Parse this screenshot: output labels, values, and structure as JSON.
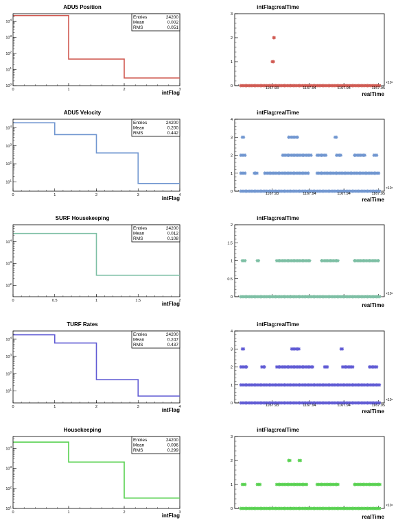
{
  "charts": [
    {
      "histogram": {
        "title": "ADU5 Position",
        "xlabel": "intFlag",
        "color": "#d05a52",
        "log_y": true,
        "x_ticks": [
          "0",
          "1",
          "2",
          "3"
        ],
        "x_range": [
          0,
          3
        ],
        "bins": [
          [
            0,
            1
          ],
          [
            1,
            2
          ],
          [
            2,
            3
          ]
        ],
        "counts": [
          23000,
          45,
          3
        ],
        "y_range": [
          1,
          30000
        ],
        "stats": {
          "entries_label": "Entries",
          "entries": "24200",
          "mean_label": "Mean",
          "mean": "0.002",
          "rms_label": "RMS",
          "rms": "0.051"
        }
      },
      "scatter": {
        "title": "intFlag:realTime",
        "xlabel": "realTime",
        "color": "#d05a52",
        "y_ticks": [
          "0",
          "1",
          "2",
          "3"
        ],
        "y_max": 3,
        "x_tick_labels": [
          "1167.93",
          "1167.94",
          "1167.94",
          "1167.95"
        ],
        "x_multiplier": "×10⁶",
        "levels": [
          {
            "y": 0,
            "segments": [
              [
                0.04,
                0.97
              ]
            ]
          },
          {
            "y": 1,
            "segments": [
              [
                0.25,
                0.27
              ]
            ]
          },
          {
            "y": 2,
            "segments": [
              [
                0.26,
                0.265
              ]
            ]
          }
        ]
      }
    },
    {
      "histogram": {
        "title": "ADU5 Velocity",
        "xlabel": "intFlag",
        "color": "#7096d0",
        "log_y": true,
        "x_ticks": [
          "0",
          "1",
          "2",
          "3",
          "4"
        ],
        "x_range": [
          0,
          4
        ],
        "bins": [
          [
            0,
            1
          ],
          [
            1,
            2
          ],
          [
            2,
            3
          ],
          [
            3,
            4
          ]
        ],
        "counts": [
          19000,
          4200,
          400,
          8
        ],
        "y_range": [
          3,
          30000
        ],
        "stats": {
          "entries_label": "Entries",
          "entries": "24200",
          "mean_label": "Mean",
          "mean": "0.200",
          "rms_label": "RMS",
          "rms": "0.442"
        }
      },
      "scatter": {
        "title": "intFlag:realTime",
        "xlabel": "realTime",
        "color": "#7096d0",
        "y_ticks": [
          "0",
          "1",
          "2",
          "3",
          "4"
        ],
        "y_max": 4,
        "x_tick_labels": [
          "1167.93",
          "1167.94",
          "1167.94",
          "1167.95"
        ],
        "x_multiplier": "×10⁶",
        "levels": [
          {
            "y": 0,
            "segments": [
              [
                0.04,
                0.97
              ]
            ]
          },
          {
            "y": 1,
            "segments": [
              [
                0.04,
                0.08
              ],
              [
                0.13,
                0.16
              ],
              [
                0.2,
                0.5
              ],
              [
                0.55,
                0.97
              ]
            ]
          },
          {
            "y": 2,
            "segments": [
              [
                0.04,
                0.08
              ],
              [
                0.32,
                0.52
              ],
              [
                0.55,
                0.62
              ],
              [
                0.68,
                0.72
              ],
              [
                0.8,
                0.88
              ],
              [
                0.93,
                0.96
              ]
            ]
          },
          {
            "y": 3,
            "segments": [
              [
                0.05,
                0.07
              ],
              [
                0.36,
                0.43
              ],
              [
                0.67,
                0.69
              ]
            ]
          }
        ]
      }
    },
    {
      "histogram": {
        "title": "SURF Housekeeping",
        "xlabel": "intFlag",
        "color": "#7dbfa4",
        "log_y": true,
        "x_ticks": [
          "0",
          "0.5",
          "1",
          "1.5",
          "2"
        ],
        "x_range": [
          0,
          2
        ],
        "bins": [
          [
            0,
            1
          ],
          [
            1,
            2
          ]
        ],
        "counts": [
          24000,
          290
        ],
        "y_range": [
          30,
          60000
        ],
        "stats": {
          "entries_label": "Entries",
          "entries": "24200",
          "mean_label": "Mean",
          "mean": "0.012",
          "rms_label": "RMS",
          "rms": "0.108"
        }
      },
      "scatter": {
        "title": "intFlag:realTime",
        "xlabel": "realTime",
        "color": "#7dbfa4",
        "y_ticks": [
          "0",
          "0.5",
          "1",
          "1.5",
          "2"
        ],
        "y_max": 2,
        "x_tick_labels": [],
        "x_multiplier": "×10⁶",
        "levels": [
          {
            "y": 0,
            "segments": [
              [
                0.04,
                0.97
              ]
            ]
          },
          {
            "y": 1,
            "segments": [
              [
                0.05,
                0.08
              ],
              [
                0.15,
                0.17
              ],
              [
                0.28,
                0.51
              ],
              [
                0.58,
                0.7
              ],
              [
                0.8,
                0.97
              ]
            ]
          }
        ]
      }
    },
    {
      "histogram": {
        "title": "TURF Rates",
        "xlabel": "intFlag",
        "color": "#5f5ad4",
        "log_y": true,
        "x_ticks": [
          "0",
          "1",
          "2",
          "3",
          "4"
        ],
        "x_range": [
          0,
          4
        ],
        "bins": [
          [
            0,
            1
          ],
          [
            1,
            2
          ],
          [
            2,
            3
          ],
          [
            3,
            4
          ]
        ],
        "counts": [
          18000,
          6000,
          45,
          5
        ],
        "y_range": [
          2,
          30000
        ],
        "stats": {
          "entries_label": "Entries",
          "entries": "24200",
          "mean_label": "Mean",
          "mean": "0.247",
          "rms_label": "RMS",
          "rms": "0.437"
        }
      },
      "scatter": {
        "title": "intFlag:realTime",
        "xlabel": "realTime",
        "color": "#5f5ad4",
        "y_ticks": [
          "0",
          "1",
          "2",
          "3",
          "4"
        ],
        "y_max": 4,
        "x_tick_labels": [
          "1167.93",
          "1167.94",
          "1167.94",
          "1167.95"
        ],
        "x_multiplier": "×10⁶",
        "levels": [
          {
            "y": 0,
            "segments": [
              [
                0.04,
                0.97
              ]
            ]
          },
          {
            "y": 1,
            "segments": [
              [
                0.04,
                0.97
              ]
            ]
          },
          {
            "y": 2,
            "segments": [
              [
                0.04,
                0.09
              ],
              [
                0.18,
                0.21
              ],
              [
                0.28,
                0.53
              ],
              [
                0.6,
                0.63
              ],
              [
                0.72,
                0.8
              ],
              [
                0.9,
                0.96
              ]
            ]
          },
          {
            "y": 3,
            "segments": [
              [
                0.05,
                0.07
              ],
              [
                0.38,
                0.44
              ],
              [
                0.71,
                0.73
              ]
            ]
          }
        ]
      }
    },
    {
      "histogram": {
        "title": "Housekeeping",
        "xlabel": "intFlag",
        "color": "#58d150",
        "log_y": true,
        "x_ticks": [
          "0",
          "1",
          "2",
          "3"
        ],
        "x_range": [
          0,
          3
        ],
        "bins": [
          [
            0,
            1
          ],
          [
            1,
            2
          ],
          [
            2,
            3
          ]
        ],
        "counts": [
          21000,
          2100,
          33
        ],
        "y_range": [
          10,
          40000
        ],
        "stats": {
          "entries_label": "Entries",
          "entries": "24200",
          "mean_label": "Mean",
          "mean": "0.096",
          "rms_label": "RMS",
          "rms": "0.299"
        }
      },
      "scatter": {
        "title": "intFlag:realTime",
        "xlabel": "realTime",
        "color": "#58d150",
        "y_ticks": [
          "0",
          "1",
          "2",
          "3"
        ],
        "y_max": 3,
        "x_tick_labels": [],
        "x_multiplier": "×10⁶",
        "levels": [
          {
            "y": 0,
            "segments": [
              [
                0.04,
                0.97
              ]
            ]
          },
          {
            "y": 1,
            "segments": [
              [
                0.05,
                0.08
              ],
              [
                0.15,
                0.18
              ],
              [
                0.28,
                0.49
              ],
              [
                0.55,
                0.7
              ],
              [
                0.8,
                0.98
              ]
            ]
          },
          {
            "y": 2,
            "segments": [
              [
                0.36,
                0.38
              ],
              [
                0.43,
                0.45
              ]
            ]
          }
        ]
      }
    }
  ],
  "chart_data": [
    {
      "type": "bar",
      "title": "ADU5 Position",
      "xlabel": "intFlag",
      "log_y": true,
      "categories": [
        "0-1",
        "1-2",
        "2-3"
      ],
      "values": [
        23000,
        45,
        3
      ],
      "entries": 24200,
      "mean": 0.002,
      "rms": 0.051
    },
    {
      "type": "scatter",
      "title": "intFlag:realTime",
      "xlabel": "realTime",
      "y_levels": [
        0,
        1,
        2
      ]
    },
    {
      "type": "bar",
      "title": "ADU5 Velocity",
      "xlabel": "intFlag",
      "log_y": true,
      "categories": [
        "0-1",
        "1-2",
        "2-3",
        "3-4"
      ],
      "values": [
        19000,
        4200,
        400,
        8
      ],
      "entries": 24200,
      "mean": 0.2,
      "rms": 0.442
    },
    {
      "type": "scatter",
      "title": "intFlag:realTime",
      "xlabel": "realTime",
      "y_levels": [
        0,
        1,
        2,
        3
      ]
    },
    {
      "type": "bar",
      "title": "SURF Housekeeping",
      "xlabel": "intFlag",
      "log_y": true,
      "categories": [
        "0-1",
        "1-2"
      ],
      "values": [
        24000,
        290
      ],
      "entries": 24200,
      "mean": 0.012,
      "rms": 0.108
    },
    {
      "type": "scatter",
      "title": "intFlag:realTime",
      "xlabel": "realTime",
      "y_levels": [
        0,
        1
      ]
    },
    {
      "type": "bar",
      "title": "TURF Rates",
      "xlabel": "intFlag",
      "log_y": true,
      "categories": [
        "0-1",
        "1-2",
        "2-3",
        "3-4"
      ],
      "values": [
        18000,
        6000,
        45,
        5
      ],
      "entries": 24200,
      "mean": 0.247,
      "rms": 0.437
    },
    {
      "type": "scatter",
      "title": "intFlag:realTime",
      "xlabel": "realTime",
      "y_levels": [
        0,
        1,
        2,
        3
      ]
    },
    {
      "type": "bar",
      "title": "Housekeeping",
      "xlabel": "intFlag",
      "log_y": true,
      "categories": [
        "0-1",
        "1-2",
        "2-3"
      ],
      "values": [
        21000,
        2100,
        33
      ],
      "entries": 24200,
      "mean": 0.096,
      "rms": 0.299
    },
    {
      "type": "scatter",
      "title": "intFlag:realTime",
      "xlabel": "realTime",
      "y_levels": [
        0,
        1,
        2
      ]
    }
  ]
}
